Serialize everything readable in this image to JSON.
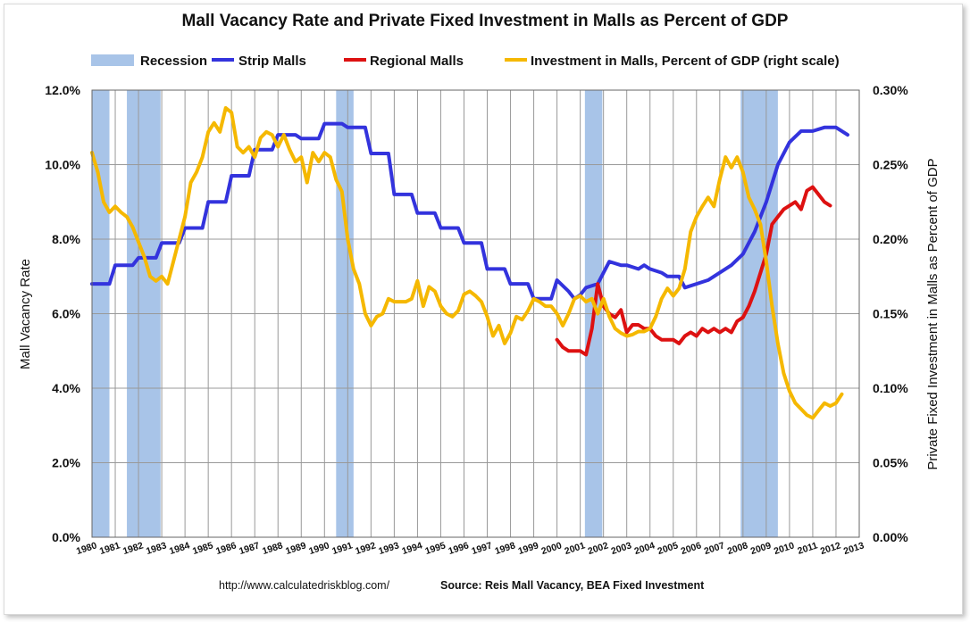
{
  "chart_data": {
    "type": "line",
    "title": "Mall Vacancy Rate and Private Fixed Investment in Malls as Percent of GDP",
    "ylabel_left": "Mall Vacancy Rate",
    "ylabel_right": "Private Fixed Investment in Malls as Percent of GDP",
    "ylim_left": [
      0,
      12
    ],
    "ylim_right": [
      0,
      0.3
    ],
    "yticks_left": [
      "0.0%",
      "2.0%",
      "4.0%",
      "6.0%",
      "8.0%",
      "10.0%",
      "12.0%"
    ],
    "yticks_right": [
      "0.00%",
      "0.05%",
      "0.10%",
      "0.15%",
      "0.20%",
      "0.25%",
      "0.30%"
    ],
    "xlim": [
      1980,
      2013
    ],
    "xticks": [
      "1980",
      "1981",
      "1982",
      "1983",
      "1984",
      "1985",
      "1986",
      "1987",
      "1988",
      "1989",
      "1990",
      "1991",
      "1992",
      "1993",
      "1994",
      "1995",
      "1996",
      "1997",
      "1998",
      "1999",
      "2000",
      "2001",
      "2002",
      "2003",
      "2004",
      "2005",
      "2006",
      "2007",
      "2008",
      "2009",
      "2010",
      "2011",
      "2012",
      "2013"
    ],
    "grid": true,
    "legend_position": "top",
    "recessions": [
      [
        1980.0,
        1980.75
      ],
      [
        1981.5,
        1982.95
      ],
      [
        1990.5,
        1991.25
      ],
      [
        2001.2,
        2001.95
      ],
      [
        2007.9,
        2009.5
      ]
    ],
    "series": [
      {
        "name": "Strip Malls",
        "axis": "left",
        "color": "#3333dd",
        "points": [
          [
            1980.0,
            6.8
          ],
          [
            1980.75,
            6.8
          ],
          [
            1981.0,
            7.3
          ],
          [
            1981.75,
            7.3
          ],
          [
            1982.0,
            7.5
          ],
          [
            1982.75,
            7.5
          ],
          [
            1983.0,
            7.9
          ],
          [
            1983.75,
            7.9
          ],
          [
            1984.0,
            8.3
          ],
          [
            1984.75,
            8.3
          ],
          [
            1985.0,
            9.0
          ],
          [
            1985.75,
            9.0
          ],
          [
            1986.0,
            9.7
          ],
          [
            1986.75,
            9.7
          ],
          [
            1987.0,
            10.4
          ],
          [
            1987.75,
            10.4
          ],
          [
            1988.0,
            10.8
          ],
          [
            1988.75,
            10.8
          ],
          [
            1989.0,
            10.7
          ],
          [
            1989.75,
            10.7
          ],
          [
            1990.0,
            11.1
          ],
          [
            1990.75,
            11.1
          ],
          [
            1991.0,
            11.0
          ],
          [
            1991.75,
            11.0
          ],
          [
            1992.0,
            10.3
          ],
          [
            1992.75,
            10.3
          ],
          [
            1993.0,
            9.2
          ],
          [
            1993.75,
            9.2
          ],
          [
            1994.0,
            8.7
          ],
          [
            1994.75,
            8.7
          ],
          [
            1995.0,
            8.3
          ],
          [
            1995.75,
            8.3
          ],
          [
            1996.0,
            7.9
          ],
          [
            1996.75,
            7.9
          ],
          [
            1997.0,
            7.2
          ],
          [
            1997.75,
            7.2
          ],
          [
            1998.0,
            6.8
          ],
          [
            1998.75,
            6.8
          ],
          [
            1999.0,
            6.4
          ],
          [
            1999.75,
            6.4
          ],
          [
            2000.0,
            6.9
          ],
          [
            2000.5,
            6.6
          ],
          [
            2000.75,
            6.4
          ],
          [
            2001.0,
            6.5
          ],
          [
            2001.25,
            6.7
          ],
          [
            2001.75,
            6.8
          ],
          [
            2002.0,
            7.1
          ],
          [
            2002.25,
            7.4
          ],
          [
            2002.75,
            7.3
          ],
          [
            2003.0,
            7.3
          ],
          [
            2003.5,
            7.2
          ],
          [
            2003.75,
            7.3
          ],
          [
            2004.0,
            7.2
          ],
          [
            2004.5,
            7.1
          ],
          [
            2004.75,
            7.0
          ],
          [
            2005.25,
            7.0
          ],
          [
            2005.5,
            6.7
          ],
          [
            2006.0,
            6.8
          ],
          [
            2006.5,
            6.9
          ],
          [
            2007.0,
            7.1
          ],
          [
            2007.5,
            7.3
          ],
          [
            2008.0,
            7.6
          ],
          [
            2008.5,
            8.2
          ],
          [
            2009.0,
            9.0
          ],
          [
            2009.5,
            10.0
          ],
          [
            2010.0,
            10.6
          ],
          [
            2010.5,
            10.9
          ],
          [
            2011.0,
            10.9
          ],
          [
            2011.5,
            11.0
          ],
          [
            2012.0,
            11.0
          ],
          [
            2012.5,
            10.8
          ]
        ]
      },
      {
        "name": "Regional Malls",
        "axis": "left",
        "color": "#dd1111",
        "points": [
          [
            2000.0,
            5.3
          ],
          [
            2000.25,
            5.1
          ],
          [
            2000.5,
            5.0
          ],
          [
            2000.75,
            5.0
          ],
          [
            2001.0,
            5.0
          ],
          [
            2001.25,
            4.9
          ],
          [
            2001.5,
            5.6
          ],
          [
            2001.75,
            6.8
          ],
          [
            2002.0,
            6.2
          ],
          [
            2002.25,
            6.0
          ],
          [
            2002.5,
            5.9
          ],
          [
            2002.75,
            6.1
          ],
          [
            2003.0,
            5.5
          ],
          [
            2003.25,
            5.7
          ],
          [
            2003.5,
            5.7
          ],
          [
            2003.75,
            5.6
          ],
          [
            2004.0,
            5.6
          ],
          [
            2004.25,
            5.4
          ],
          [
            2004.5,
            5.3
          ],
          [
            2004.75,
            5.3
          ],
          [
            2005.0,
            5.3
          ],
          [
            2005.25,
            5.2
          ],
          [
            2005.5,
            5.4
          ],
          [
            2005.75,
            5.5
          ],
          [
            2006.0,
            5.4
          ],
          [
            2006.25,
            5.6
          ],
          [
            2006.5,
            5.5
          ],
          [
            2006.75,
            5.6
          ],
          [
            2007.0,
            5.5
          ],
          [
            2007.25,
            5.6
          ],
          [
            2007.5,
            5.5
          ],
          [
            2007.75,
            5.8
          ],
          [
            2008.0,
            5.9
          ],
          [
            2008.25,
            6.2
          ],
          [
            2008.5,
            6.6
          ],
          [
            2008.75,
            7.1
          ],
          [
            2009.0,
            7.6
          ],
          [
            2009.25,
            8.4
          ],
          [
            2009.5,
            8.6
          ],
          [
            2009.75,
            8.8
          ],
          [
            2010.0,
            8.9
          ],
          [
            2010.25,
            9.0
          ],
          [
            2010.5,
            8.8
          ],
          [
            2010.75,
            9.3
          ],
          [
            2011.0,
            9.4
          ],
          [
            2011.25,
            9.2
          ],
          [
            2011.5,
            9.0
          ],
          [
            2011.75,
            8.9
          ]
        ]
      },
      {
        "name": "Investment in Malls, Percent of GDP (right scale)",
        "axis": "right",
        "color": "#f5b800",
        "points": [
          [
            1980.0,
            0.258
          ],
          [
            1980.25,
            0.245
          ],
          [
            1980.5,
            0.225
          ],
          [
            1980.75,
            0.218
          ],
          [
            1981.0,
            0.222
          ],
          [
            1981.25,
            0.218
          ],
          [
            1981.5,
            0.215
          ],
          [
            1981.75,
            0.208
          ],
          [
            1982.0,
            0.198
          ],
          [
            1982.25,
            0.188
          ],
          [
            1982.5,
            0.175
          ],
          [
            1982.75,
            0.172
          ],
          [
            1983.0,
            0.175
          ],
          [
            1983.25,
            0.17
          ],
          [
            1983.5,
            0.185
          ],
          [
            1983.75,
            0.2
          ],
          [
            1984.0,
            0.215
          ],
          [
            1984.25,
            0.238
          ],
          [
            1984.5,
            0.245
          ],
          [
            1984.75,
            0.255
          ],
          [
            1985.0,
            0.272
          ],
          [
            1985.25,
            0.278
          ],
          [
            1985.5,
            0.272
          ],
          [
            1985.75,
            0.288
          ],
          [
            1986.0,
            0.285
          ],
          [
            1986.25,
            0.262
          ],
          [
            1986.5,
            0.258
          ],
          [
            1986.75,
            0.262
          ],
          [
            1987.0,
            0.255
          ],
          [
            1987.25,
            0.268
          ],
          [
            1987.5,
            0.272
          ],
          [
            1987.75,
            0.27
          ],
          [
            1988.0,
            0.262
          ],
          [
            1988.25,
            0.27
          ],
          [
            1988.5,
            0.26
          ],
          [
            1988.75,
            0.252
          ],
          [
            1989.0,
            0.255
          ],
          [
            1989.25,
            0.238
          ],
          [
            1989.5,
            0.258
          ],
          [
            1989.75,
            0.252
          ],
          [
            1990.0,
            0.258
          ],
          [
            1990.25,
            0.255
          ],
          [
            1990.5,
            0.24
          ],
          [
            1990.75,
            0.232
          ],
          [
            1991.0,
            0.2
          ],
          [
            1991.25,
            0.18
          ],
          [
            1991.5,
            0.17
          ],
          [
            1991.75,
            0.15
          ],
          [
            1992.0,
            0.142
          ],
          [
            1992.25,
            0.148
          ],
          [
            1992.5,
            0.15
          ],
          [
            1992.75,
            0.16
          ],
          [
            1993.0,
            0.158
          ],
          [
            1993.25,
            0.158
          ],
          [
            1993.5,
            0.158
          ],
          [
            1993.75,
            0.16
          ],
          [
            1994.0,
            0.172
          ],
          [
            1994.25,
            0.155
          ],
          [
            1994.5,
            0.168
          ],
          [
            1994.75,
            0.165
          ],
          [
            1995.0,
            0.155
          ],
          [
            1995.25,
            0.15
          ],
          [
            1995.5,
            0.148
          ],
          [
            1995.75,
            0.152
          ],
          [
            1996.0,
            0.163
          ],
          [
            1996.25,
            0.165
          ],
          [
            1996.5,
            0.162
          ],
          [
            1996.75,
            0.158
          ],
          [
            1997.0,
            0.148
          ],
          [
            1997.25,
            0.135
          ],
          [
            1997.5,
            0.142
          ],
          [
            1997.75,
            0.13
          ],
          [
            1998.0,
            0.137
          ],
          [
            1998.25,
            0.148
          ],
          [
            1998.5,
            0.146
          ],
          [
            1998.75,
            0.152
          ],
          [
            1999.0,
            0.16
          ],
          [
            1999.25,
            0.158
          ],
          [
            1999.5,
            0.155
          ],
          [
            1999.75,
            0.155
          ],
          [
            2000.0,
            0.15
          ],
          [
            2000.25,
            0.142
          ],
          [
            2000.5,
            0.15
          ],
          [
            2000.75,
            0.16
          ],
          [
            2001.0,
            0.162
          ],
          [
            2001.25,
            0.158
          ],
          [
            2001.5,
            0.16
          ],
          [
            2001.75,
            0.15
          ],
          [
            2002.0,
            0.16
          ],
          [
            2002.25,
            0.148
          ],
          [
            2002.5,
            0.14
          ],
          [
            2002.75,
            0.137
          ],
          [
            2003.0,
            0.135
          ],
          [
            2003.25,
            0.136
          ],
          [
            2003.5,
            0.138
          ],
          [
            2003.75,
            0.138
          ],
          [
            2004.0,
            0.14
          ],
          [
            2004.25,
            0.148
          ],
          [
            2004.5,
            0.16
          ],
          [
            2004.75,
            0.167
          ],
          [
            2005.0,
            0.162
          ],
          [
            2005.25,
            0.167
          ],
          [
            2005.5,
            0.18
          ],
          [
            2005.75,
            0.205
          ],
          [
            2006.0,
            0.215
          ],
          [
            2006.25,
            0.222
          ],
          [
            2006.5,
            0.228
          ],
          [
            2006.75,
            0.222
          ],
          [
            2007.0,
            0.24
          ],
          [
            2007.25,
            0.255
          ],
          [
            2007.5,
            0.248
          ],
          [
            2007.75,
            0.255
          ],
          [
            2008.0,
            0.245
          ],
          [
            2008.25,
            0.228
          ],
          [
            2008.5,
            0.22
          ],
          [
            2008.75,
            0.21
          ],
          [
            2009.0,
            0.185
          ],
          [
            2009.25,
            0.155
          ],
          [
            2009.5,
            0.13
          ],
          [
            2009.75,
            0.11
          ],
          [
            2010.0,
            0.098
          ],
          [
            2010.25,
            0.09
          ],
          [
            2010.5,
            0.086
          ],
          [
            2010.75,
            0.082
          ],
          [
            2011.0,
            0.08
          ],
          [
            2011.25,
            0.085
          ],
          [
            2011.5,
            0.09
          ],
          [
            2011.75,
            0.088
          ],
          [
            2012.0,
            0.09
          ],
          [
            2012.25,
            0.096
          ]
        ]
      }
    ],
    "recession_label": "Recession",
    "recession_color": "#a8c4e8",
    "footer_url": "http://www.calculatedriskblog.com/",
    "footer_source": "Source: Reis Mall Vacancy, BEA Fixed Investment"
  }
}
